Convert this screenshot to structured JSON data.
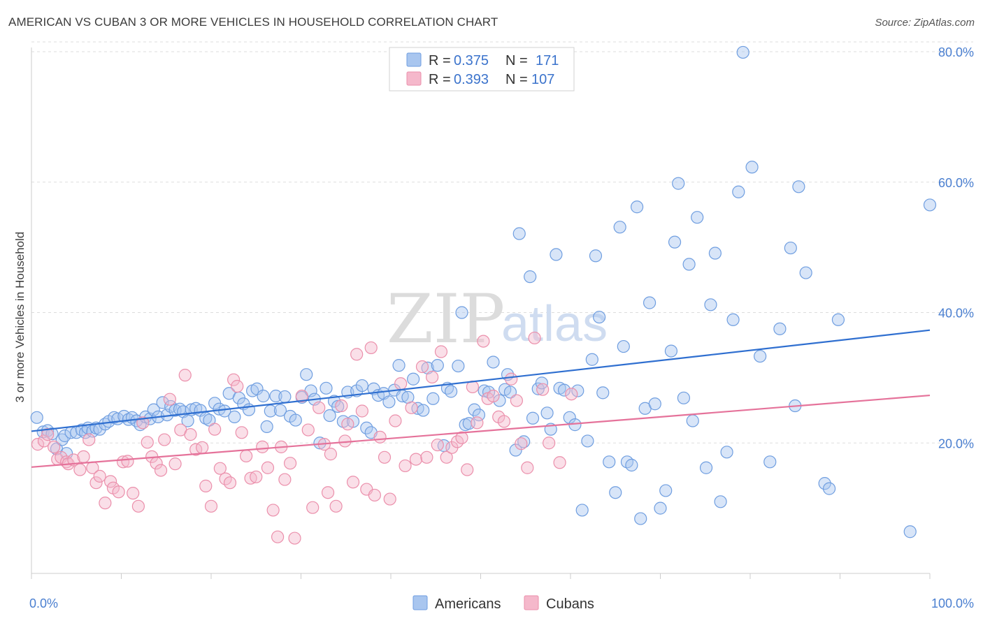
{
  "header": {
    "title": "AMERICAN VS CUBAN 3 OR MORE VEHICLES IN HOUSEHOLD CORRELATION CHART",
    "source": "Source: ZipAtlas.com"
  },
  "watermark": {
    "zip": "ZIP",
    "atlas": "atlas"
  },
  "legend_top": [
    {
      "r_label": "R =",
      "r_value": "0.375",
      "n_label": "N =",
      "n_value": "171",
      "color": "#a9c6ef"
    },
    {
      "r_label": "R =",
      "r_value": "0.393",
      "n_label": "N =",
      "n_value": "107",
      "color": "#f5b8cb"
    }
  ],
  "legend_bottom": [
    {
      "label": "Americans",
      "color": "#a9c6ef"
    },
    {
      "label": "Cubans",
      "color": "#f5b8cb"
    }
  ],
  "colors": {
    "americans_fill": "#a9c6ef",
    "americans_stroke": "#6f9ee0",
    "americans_line": "#2f6fd0",
    "cubans_fill": "#f5b8cb",
    "cubans_stroke": "#eb8fab",
    "cubans_line": "#e5729a",
    "grid": "#dddddd",
    "tick_label": "#4a7fd0"
  },
  "chart_data": {
    "type": "scatter",
    "title": "AMERICAN VS CUBAN 3 OR MORE VEHICLES IN HOUSEHOLD CORRELATION CHART",
    "xlabel": "",
    "ylabel": "3 or more Vehicles in Household",
    "xlim": [
      0,
      100
    ],
    "ylim": [
      0,
      81.5
    ],
    "x_tick_labels": [
      "0.0%",
      "100.0%"
    ],
    "y_ticks": [
      20,
      40,
      60,
      80
    ],
    "y_tick_labels": [
      "20.0%",
      "40.0%",
      "60.0%",
      "80.0%"
    ],
    "grid": true,
    "legend_position": "top-center",
    "series": [
      {
        "name": "Americans",
        "trend": [
          [
            0,
            21.8
          ],
          [
            100,
            37.3
          ]
        ],
        "points": [
          [
            0.6,
            23.9
          ],
          [
            1.3,
            21.7
          ],
          [
            1.8,
            21.9
          ],
          [
            2.3,
            21.4
          ],
          [
            2.8,
            19.1
          ],
          [
            3.4,
            20.5
          ],
          [
            3.7,
            21.1
          ],
          [
            3.9,
            18.4
          ],
          [
            4.4,
            21.6
          ],
          [
            5.0,
            21.6
          ],
          [
            5.6,
            22.0
          ],
          [
            6.0,
            21.6
          ],
          [
            6.3,
            22.3
          ],
          [
            6.8,
            21.8
          ],
          [
            7.2,
            22.3
          ],
          [
            7.6,
            22.1
          ],
          [
            8.2,
            22.9
          ],
          [
            8.6,
            23.3
          ],
          [
            9.2,
            23.9
          ],
          [
            9.6,
            23.7
          ],
          [
            10.3,
            24.1
          ],
          [
            10.8,
            23.6
          ],
          [
            11.2,
            23.9
          ],
          [
            11.7,
            23.4
          ],
          [
            12.1,
            22.8
          ],
          [
            12.7,
            24.0
          ],
          [
            13.2,
            23.7
          ],
          [
            13.6,
            25.1
          ],
          [
            14.1,
            24.0
          ],
          [
            14.6,
            26.2
          ],
          [
            15.1,
            24.3
          ],
          [
            15.5,
            25.6
          ],
          [
            16.0,
            25.0
          ],
          [
            16.5,
            25.2
          ],
          [
            16.9,
            24.8
          ],
          [
            17.4,
            23.4
          ],
          [
            17.8,
            25.1
          ],
          [
            18.3,
            25.3
          ],
          [
            18.8,
            25.0
          ],
          [
            19.4,
            23.8
          ],
          [
            19.8,
            23.5
          ],
          [
            20.4,
            26.1
          ],
          [
            20.9,
            25.2
          ],
          [
            21.5,
            24.9
          ],
          [
            22.0,
            27.6
          ],
          [
            22.6,
            24.0
          ],
          [
            23.1,
            26.9
          ],
          [
            23.6,
            26.0
          ],
          [
            24.2,
            25.1
          ],
          [
            24.6,
            28.0
          ],
          [
            25.1,
            28.3
          ],
          [
            25.8,
            27.2
          ],
          [
            26.2,
            22.5
          ],
          [
            26.6,
            24.9
          ],
          [
            27.2,
            27.2
          ],
          [
            27.7,
            25.0
          ],
          [
            28.2,
            27.1
          ],
          [
            28.8,
            24.1
          ],
          [
            29.4,
            23.5
          ],
          [
            30.1,
            27.0
          ],
          [
            30.6,
            30.5
          ],
          [
            31.1,
            28.0
          ],
          [
            31.5,
            26.7
          ],
          [
            32.1,
            20.0
          ],
          [
            32.8,
            28.4
          ],
          [
            33.2,
            24.2
          ],
          [
            33.7,
            26.4
          ],
          [
            34.1,
            25.6
          ],
          [
            34.7,
            23.3
          ],
          [
            35.2,
            27.8
          ],
          [
            35.8,
            23.3
          ],
          [
            36.2,
            28.0
          ],
          [
            36.8,
            28.8
          ],
          [
            37.3,
            22.3
          ],
          [
            37.8,
            21.6
          ],
          [
            38.1,
            28.3
          ],
          [
            38.6,
            27.3
          ],
          [
            39.2,
            27.6
          ],
          [
            39.8,
            26.3
          ],
          [
            40.4,
            28.1
          ],
          [
            40.9,
            31.9
          ],
          [
            41.3,
            27.2
          ],
          [
            41.9,
            27.0
          ],
          [
            42.5,
            29.8
          ],
          [
            43.0,
            25.3
          ],
          [
            43.6,
            25.0
          ],
          [
            44.1,
            31.5
          ],
          [
            44.7,
            26.8
          ],
          [
            45.2,
            31.9
          ],
          [
            45.9,
            19.6
          ],
          [
            46.3,
            28.4
          ],
          [
            46.7,
            27.9
          ],
          [
            47.5,
            31.8
          ],
          [
            47.9,
            40.0
          ],
          [
            48.3,
            22.8
          ],
          [
            48.7,
            23.0
          ],
          [
            49.3,
            25.1
          ],
          [
            49.8,
            24.3
          ],
          [
            50.4,
            28.0
          ],
          [
            50.9,
            27.8
          ],
          [
            51.4,
            32.4
          ],
          [
            52.1,
            26.5
          ],
          [
            52.7,
            28.2
          ],
          [
            53.0,
            30.5
          ],
          [
            53.3,
            27.8
          ],
          [
            53.9,
            18.9
          ],
          [
            54.3,
            52.1
          ],
          [
            54.8,
            20.2
          ],
          [
            55.5,
            45.5
          ],
          [
            55.8,
            23.8
          ],
          [
            56.4,
            28.3
          ],
          [
            56.8,
            29.2
          ],
          [
            57.4,
            24.6
          ],
          [
            57.8,
            22.1
          ],
          [
            58.4,
            48.9
          ],
          [
            58.8,
            28.4
          ],
          [
            59.3,
            28.1
          ],
          [
            59.9,
            23.9
          ],
          [
            60.5,
            22.8
          ],
          [
            60.8,
            28.0
          ],
          [
            61.3,
            9.7
          ],
          [
            61.9,
            20.3
          ],
          [
            62.4,
            32.8
          ],
          [
            62.8,
            48.7
          ],
          [
            63.2,
            39.3
          ],
          [
            63.6,
            27.7
          ],
          [
            64.3,
            17.1
          ],
          [
            65.0,
            12.4
          ],
          [
            65.5,
            53.1
          ],
          [
            65.9,
            34.8
          ],
          [
            66.3,
            17.1
          ],
          [
            66.8,
            16.6
          ],
          [
            67.4,
            56.2
          ],
          [
            67.8,
            8.4
          ],
          [
            68.3,
            25.3
          ],
          [
            68.8,
            41.5
          ],
          [
            69.4,
            26.0
          ],
          [
            70.0,
            10.0
          ],
          [
            70.6,
            12.7
          ],
          [
            71.2,
            34.1
          ],
          [
            71.6,
            50.8
          ],
          [
            72.0,
            59.8
          ],
          [
            72.6,
            26.9
          ],
          [
            73.2,
            47.4
          ],
          [
            73.6,
            23.4
          ],
          [
            74.1,
            54.6
          ],
          [
            75.1,
            16.2
          ],
          [
            75.6,
            41.2
          ],
          [
            76.1,
            49.1
          ],
          [
            76.7,
            11.0
          ],
          [
            77.4,
            18.6
          ],
          [
            78.1,
            38.9
          ],
          [
            78.7,
            58.5
          ],
          [
            79.2,
            79.9
          ],
          [
            80.2,
            62.3
          ],
          [
            81.1,
            33.3
          ],
          [
            82.2,
            17.1
          ],
          [
            83.3,
            37.5
          ],
          [
            84.5,
            49.9
          ],
          [
            85.0,
            25.7
          ],
          [
            85.4,
            59.3
          ],
          [
            86.2,
            46.1
          ],
          [
            88.3,
            13.8
          ],
          [
            88.8,
            13.0
          ],
          [
            89.8,
            38.9
          ],
          [
            97.8,
            6.4
          ],
          [
            100.0,
            56.5
          ]
        ]
      },
      {
        "name": "Cubans",
        "trend": [
          [
            0,
            16.3
          ],
          [
            100,
            27.3
          ]
        ],
        "points": [
          [
            0.7,
            19.8
          ],
          [
            1.4,
            20.3
          ],
          [
            1.8,
            21.3
          ],
          [
            2.5,
            19.4
          ],
          [
            2.9,
            17.5
          ],
          [
            3.3,
            17.8
          ],
          [
            3.9,
            17.1
          ],
          [
            4.1,
            16.8
          ],
          [
            4.7,
            17.4
          ],
          [
            5.4,
            15.9
          ],
          [
            5.8,
            17.9
          ],
          [
            6.4,
            20.5
          ],
          [
            6.8,
            16.2
          ],
          [
            7.2,
            13.9
          ],
          [
            7.6,
            14.9
          ],
          [
            8.2,
            10.8
          ],
          [
            8.8,
            14.1
          ],
          [
            9.1,
            13.1
          ],
          [
            9.7,
            12.5
          ],
          [
            10.2,
            17.1
          ],
          [
            10.7,
            17.2
          ],
          [
            11.3,
            12.3
          ],
          [
            11.9,
            10.3
          ],
          [
            12.4,
            23.1
          ],
          [
            12.9,
            20.1
          ],
          [
            13.4,
            17.9
          ],
          [
            13.9,
            16.9
          ],
          [
            14.4,
            15.8
          ],
          [
            14.8,
            20.5
          ],
          [
            15.4,
            26.7
          ],
          [
            16.0,
            16.8
          ],
          [
            16.6,
            22.0
          ],
          [
            17.1,
            30.4
          ],
          [
            17.7,
            21.3
          ],
          [
            18.3,
            19.0
          ],
          [
            19.0,
            19.3
          ],
          [
            19.4,
            13.4
          ],
          [
            20.0,
            10.3
          ],
          [
            20.4,
            22.1
          ],
          [
            21.0,
            16.1
          ],
          [
            21.6,
            14.5
          ],
          [
            22.1,
            13.9
          ],
          [
            22.5,
            29.7
          ],
          [
            22.9,
            28.7
          ],
          [
            23.4,
            21.6
          ],
          [
            23.9,
            18.0
          ],
          [
            24.4,
            14.6
          ],
          [
            25.0,
            14.8
          ],
          [
            25.7,
            19.4
          ],
          [
            26.3,
            16.2
          ],
          [
            26.9,
            9.7
          ],
          [
            27.4,
            5.6
          ],
          [
            27.8,
            19.4
          ],
          [
            28.2,
            14.4
          ],
          [
            28.8,
            16.9
          ],
          [
            29.3,
            5.4
          ],
          [
            30.1,
            27.2
          ],
          [
            30.8,
            22.0
          ],
          [
            31.3,
            10.1
          ],
          [
            32.0,
            25.4
          ],
          [
            32.6,
            19.8
          ],
          [
            33.0,
            12.4
          ],
          [
            33.3,
            18.3
          ],
          [
            33.9,
            10.3
          ],
          [
            34.5,
            25.7
          ],
          [
            34.9,
            20.3
          ],
          [
            35.2,
            22.9
          ],
          [
            35.8,
            14.0
          ],
          [
            36.2,
            33.6
          ],
          [
            36.8,
            24.9
          ],
          [
            37.3,
            12.9
          ],
          [
            37.8,
            34.6
          ],
          [
            38.2,
            12.0
          ],
          [
            38.8,
            20.9
          ],
          [
            39.3,
            17.8
          ],
          [
            39.9,
            11.4
          ],
          [
            40.5,
            23.4
          ],
          [
            41.1,
            29.1
          ],
          [
            41.6,
            16.5
          ],
          [
            42.3,
            25.4
          ],
          [
            42.8,
            17.5
          ],
          [
            43.5,
            31.7
          ],
          [
            44.0,
            17.8
          ],
          [
            44.6,
            30.1
          ],
          [
            45.2,
            19.7
          ],
          [
            45.6,
            34.0
          ],
          [
            46.2,
            17.8
          ],
          [
            46.8,
            19.3
          ],
          [
            47.4,
            20.2
          ],
          [
            47.9,
            20.8
          ],
          [
            48.5,
            15.9
          ],
          [
            49.1,
            28.6
          ],
          [
            49.6,
            23.1
          ],
          [
            50.3,
            35.6
          ],
          [
            50.8,
            26.8
          ],
          [
            51.4,
            27.2
          ],
          [
            52.0,
            24.0
          ],
          [
            52.6,
            23.3
          ],
          [
            53.4,
            29.8
          ],
          [
            54.0,
            26.5
          ],
          [
            54.5,
            19.9
          ],
          [
            55.2,
            16.2
          ],
          [
            56.0,
            36.1
          ],
          [
            56.9,
            28.2
          ],
          [
            57.6,
            20.0
          ],
          [
            58.8,
            17.0
          ],
          [
            60.1,
            27.5
          ]
        ]
      }
    ]
  }
}
